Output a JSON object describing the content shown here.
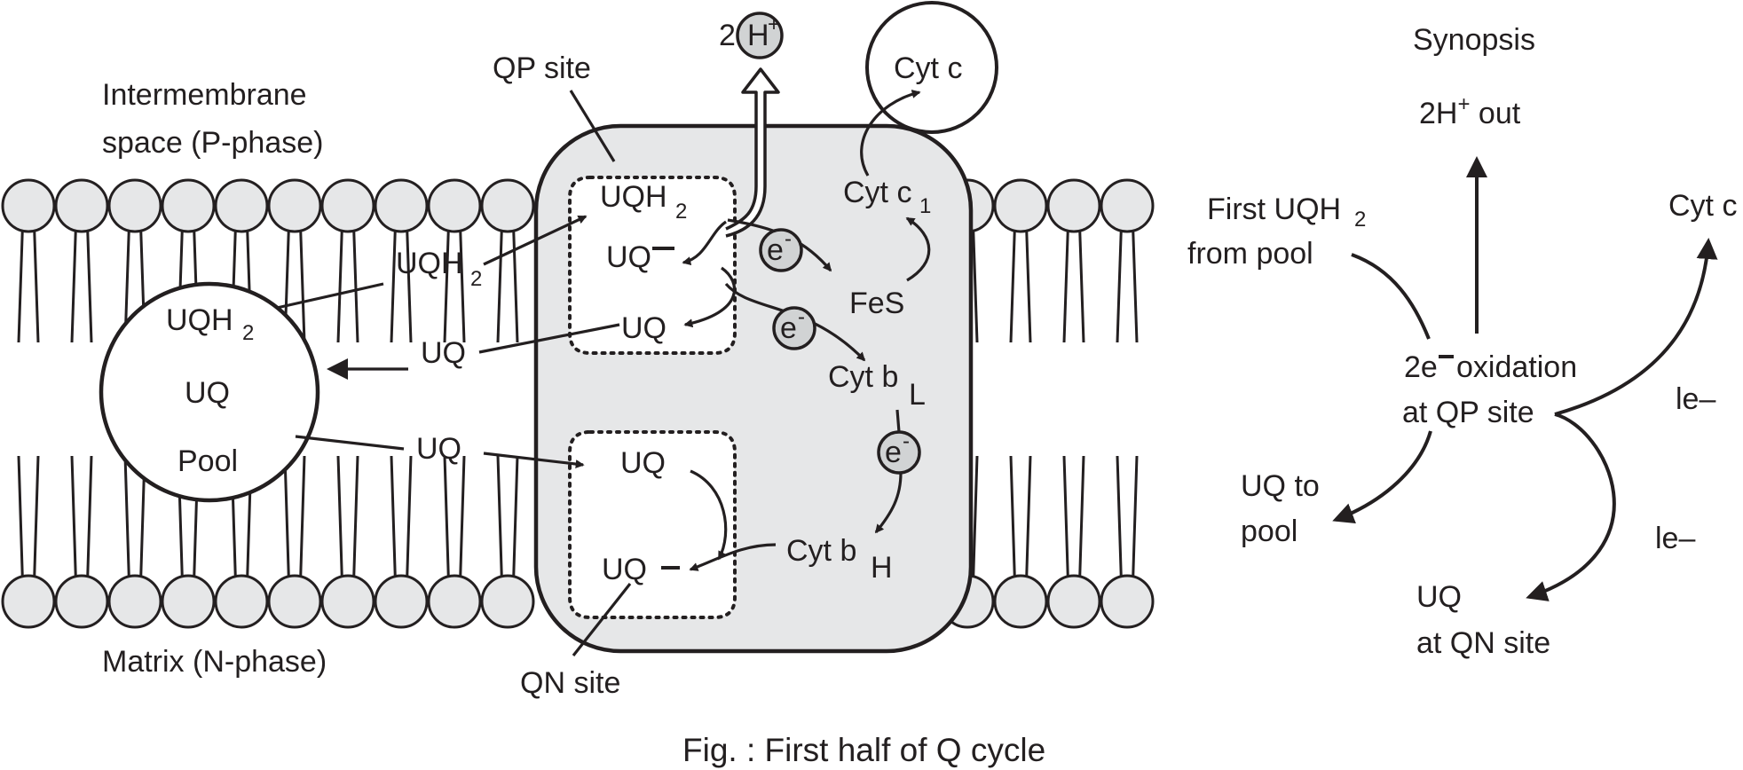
{
  "diagram": {
    "phases": {
      "intermembrane_line1": "Intermembrane",
      "intermembrane_line2": "space (P-phase)",
      "matrix": "Matrix (N-phase)"
    },
    "pool": {
      "uqh2": "UQH",
      "uqh2_sub": "2",
      "uq": "UQ",
      "label": "Pool"
    },
    "sites": {
      "qp": "QP site",
      "qn": "QN site"
    },
    "proton": {
      "coefficient": "2",
      "ion": "H",
      "charge": "+"
    },
    "cyt_c": "Cyt c",
    "complex": {
      "qp_uqh2": "UQH",
      "qp_uqh2_sub": "2",
      "qp_uq_radical": "UQ",
      "qp_uq": "UQ",
      "cyt_c1": "Cyt c",
      "cyt_c1_sub": "1",
      "fes": "FeS",
      "cyt_bl": "Cyt b",
      "cyt_bl_sub": "L",
      "cyt_bh": "Cyt b",
      "cyt_bh_sub": "H",
      "qn_uq": "UQ",
      "qn_uq_radical": "UQ",
      "electron": "e",
      "electron_charge": "-"
    },
    "transit": {
      "uqh2": "UQH",
      "uqh2_sub": "2",
      "uq_out": "UQ",
      "uq_in": "UQ"
    },
    "synopsis": {
      "title": "Synopsis",
      "protons_out": "2H",
      "protons_out_charge": "+",
      "protons_out_suffix": " out",
      "first_uqh2_line1": "First UQH",
      "first_uqh2_sub": "2",
      "first_uqh2_line2": "from pool",
      "center_line1_prefix": "2e",
      "center_line1_suffix": "oxidation",
      "center_line2": "at QP site",
      "cyt_c": "Cyt c",
      "le_upper": "le–",
      "le_lower": "le–",
      "uq_to_pool_line1": "UQ to",
      "uq_to_pool_line2": "pool",
      "uq_qn_line1": "UQ",
      "uq_qn_line2": "at QN site"
    },
    "caption": "Fig. : First half of Q cycle"
  }
}
